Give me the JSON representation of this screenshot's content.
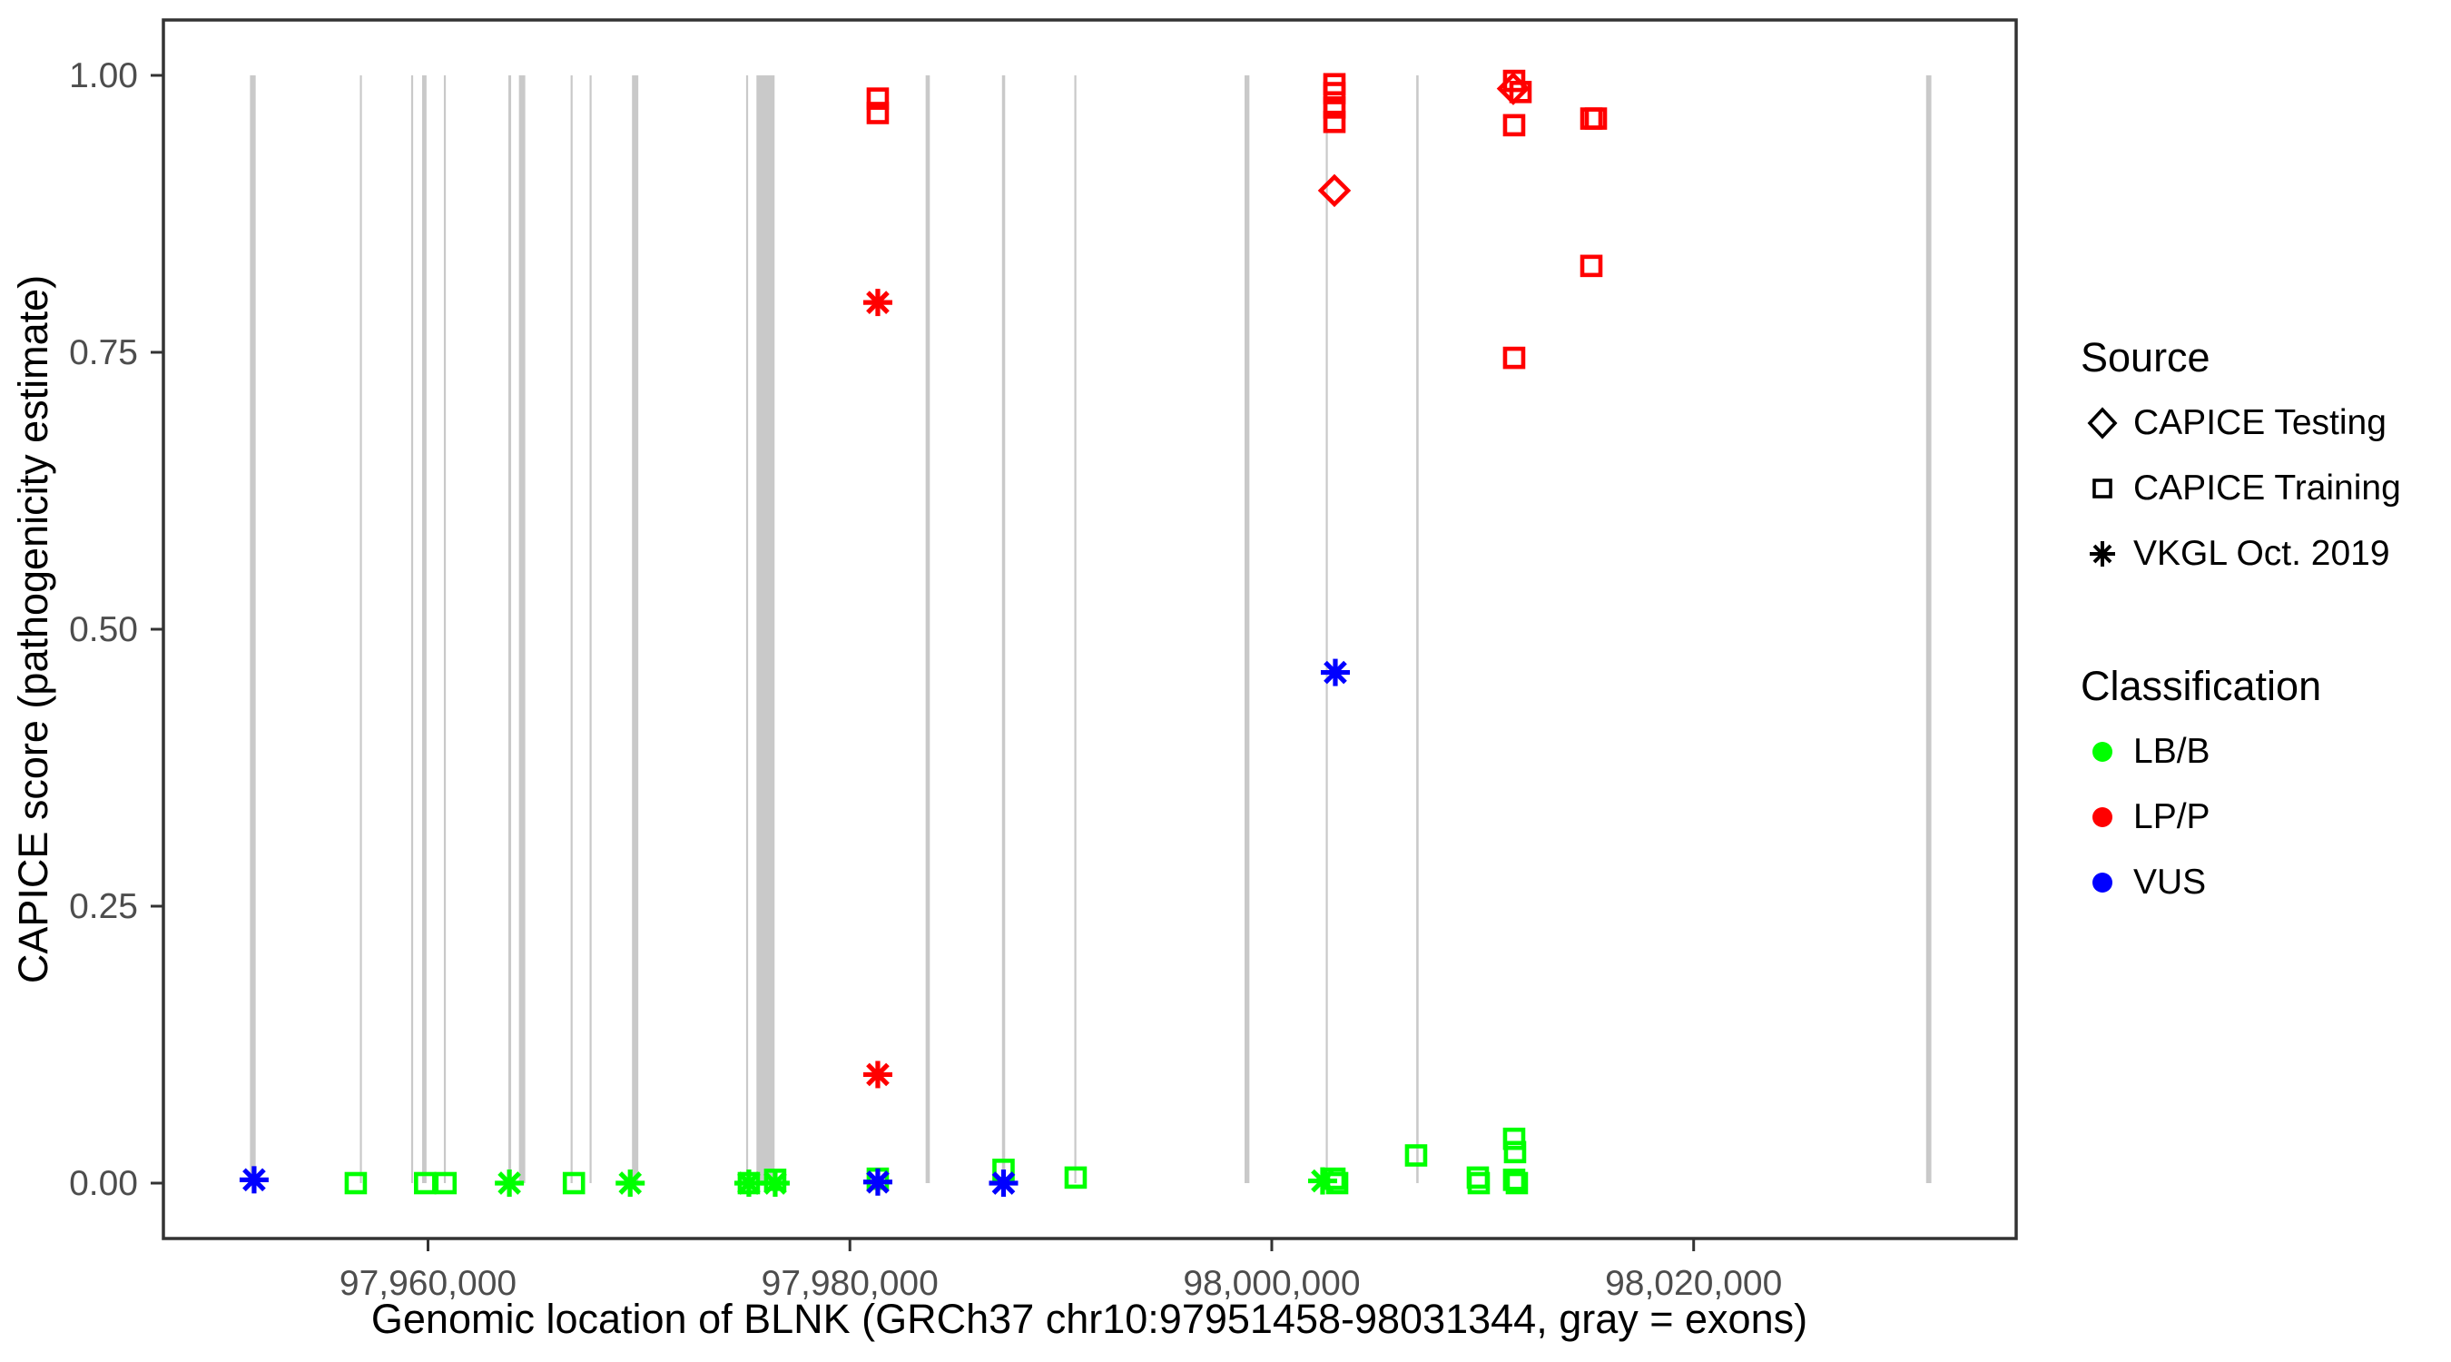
{
  "figure": {
    "kind": "scatter plot",
    "background": "#ffffff"
  },
  "legend": {
    "source": {
      "title": "Source",
      "items": [
        {
          "label": "CAPICE Testing",
          "symbol": "diamond-icon"
        },
        {
          "label": "CAPICE Training",
          "symbol": "square-icon"
        },
        {
          "label": "VKGL Oct. 2019",
          "symbol": "asterisk-icon"
        }
      ]
    },
    "classification": {
      "title": "Classification",
      "items": [
        {
          "label": "LB/B",
          "color": "#00FF00"
        },
        {
          "label": "LP/P",
          "color": "#FF0000"
        },
        {
          "label": "VUS",
          "color": "#0000FF"
        }
      ]
    }
  },
  "colors": {
    "accent_red": "#FF0000",
    "accent_green": "#00FF00",
    "accent_blue": "#0000FF",
    "exon_gray": "#C9C9C9",
    "panel_border": "#333333",
    "tick_text": "#4D4D4D",
    "title_text": "#000000"
  },
  "chart_data": {
    "type": "scatter",
    "title": "",
    "xlabel": "Genomic location of BLNK (GRCh37 chr10:97951458-98031344, gray = exons)",
    "ylabel": "CAPICE score (pathogenicity estimate)",
    "grid": false,
    "legend_position": "right",
    "x_axis": {
      "min": 97947455,
      "max": 98035290,
      "ticks": [
        97960000,
        97980000,
        98000000,
        98020000
      ],
      "tick_labels": [
        "97,960,000",
        "97,980,000",
        "98,000,000",
        "98,020,000"
      ]
    },
    "y_axis": {
      "min": -0.05,
      "max": 1.05,
      "ticks": [
        0.0,
        0.25,
        0.5,
        0.75,
        1.0
      ],
      "tick_labels": [
        "0.00",
        "0.25",
        "0.50",
        "0.75",
        "1.00"
      ]
    },
    "shape_map": {
      "CAPICE Testing": "diamond",
      "CAPICE Training": "square",
      "VKGL Oct. 2019": "asterisk"
    },
    "classification_colors": {
      "LB/B": "#00FF00",
      "LP/P": "#FF0000",
      "VUS": "#0000FF"
    },
    "exons_note": "gray vertical bars = exons, drawn from score 0 to 1",
    "exons": [
      [
        97951560,
        97951830
      ],
      [
        97956770,
        97956860
      ],
      [
        97959200,
        97959290
      ],
      [
        97959720,
        97959930
      ],
      [
        97960750,
        97960840
      ],
      [
        97963810,
        97963940
      ],
      [
        97964310,
        97964610
      ],
      [
        97966760,
        97966850
      ],
      [
        97967660,
        97967750
      ],
      [
        97969670,
        97969970
      ],
      [
        97975080,
        97975170
      ],
      [
        97975570,
        97976430
      ],
      [
        97983590,
        97983790
      ],
      [
        97987210,
        97987360
      ],
      [
        97990640,
        97990730
      ],
      [
        97998710,
        97998940
      ],
      [
        98002560,
        98002650
      ],
      [
        98006850,
        98006960
      ],
      [
        98031020,
        98031270
      ]
    ],
    "points": [
      {
        "pos": 97951755,
        "score": 0.003,
        "source": "VKGL Oct. 2019",
        "classification": "VUS"
      },
      {
        "pos": 97956576,
        "score": 0.0,
        "source": "CAPICE Training",
        "classification": "LB/B"
      },
      {
        "pos": 97959863,
        "score": 0.0,
        "source": "CAPICE Training",
        "classification": "LB/B"
      },
      {
        "pos": 97960831,
        "score": 0.0,
        "source": "CAPICE Training",
        "classification": "LB/B"
      },
      {
        "pos": 97963857,
        "score": 0.0,
        "source": "VKGL Oct. 2019",
        "classification": "LB/B"
      },
      {
        "pos": 97966916,
        "score": 0.0,
        "source": "CAPICE Training",
        "classification": "LB/B"
      },
      {
        "pos": 97969585,
        "score": 0.0,
        "source": "VKGL Oct. 2019",
        "classification": "LB/B"
      },
      {
        "pos": 97975210,
        "score": 0.0,
        "source": "CAPICE Training",
        "classification": "LB/B"
      },
      {
        "pos": 97975210,
        "score": 0.0,
        "source": "VKGL Oct. 2019",
        "classification": "LB/B"
      },
      {
        "pos": 97976458,
        "score": 0.003,
        "source": "CAPICE Training",
        "classification": "LB/B"
      },
      {
        "pos": 97976458,
        "score": 0.0,
        "source": "VKGL Oct. 2019",
        "classification": "LB/B"
      },
      {
        "pos": 97981322,
        "score": 0.979,
        "source": "CAPICE Training",
        "classification": "LP/P"
      },
      {
        "pos": 97981322,
        "score": 0.966,
        "source": "CAPICE Training",
        "classification": "LP/P"
      },
      {
        "pos": 97981322,
        "score": 0.795,
        "source": "VKGL Oct. 2019",
        "classification": "LP/P"
      },
      {
        "pos": 97981322,
        "score": 0.098,
        "source": "VKGL Oct. 2019",
        "classification": "LP/P"
      },
      {
        "pos": 97981322,
        "score": 0.004,
        "source": "CAPICE Training",
        "classification": "LB/B"
      },
      {
        "pos": 97981322,
        "score": 0.001,
        "source": "VKGL Oct. 2019",
        "classification": "VUS"
      },
      {
        "pos": 97987283,
        "score": 0.012,
        "source": "CAPICE Training",
        "classification": "LB/B"
      },
      {
        "pos": 97987283,
        "score": 0.0,
        "source": "VKGL Oct. 2019",
        "classification": "VUS"
      },
      {
        "pos": 97990704,
        "score": 0.005,
        "source": "CAPICE Training",
        "classification": "LB/B"
      },
      {
        "pos": 98002970,
        "score": 0.992,
        "source": "CAPICE Training",
        "classification": "LP/P"
      },
      {
        "pos": 98002970,
        "score": 0.984,
        "source": "CAPICE Training",
        "classification": "LP/P"
      },
      {
        "pos": 98002970,
        "score": 0.971,
        "source": "CAPICE Training",
        "classification": "LP/P"
      },
      {
        "pos": 98002970,
        "score": 0.958,
        "source": "CAPICE Training",
        "classification": "LP/P"
      },
      {
        "pos": 98002970,
        "score": 0.896,
        "source": "CAPICE Testing",
        "classification": "LP/P"
      },
      {
        "pos": 98003013,
        "score": 0.461,
        "source": "VKGL Oct. 2019",
        "classification": "VUS"
      },
      {
        "pos": 98002410,
        "score": 0.002,
        "source": "VKGL Oct. 2019",
        "classification": "LB/B"
      },
      {
        "pos": 98002970,
        "score": 0.004,
        "source": "CAPICE Training",
        "classification": "LB/B"
      },
      {
        "pos": 98003100,
        "score": 0.0,
        "source": "CAPICE Training",
        "classification": "LB/B"
      },
      {
        "pos": 98006842,
        "score": 0.025,
        "source": "CAPICE Training",
        "classification": "LB/B"
      },
      {
        "pos": 98009769,
        "score": 0.005,
        "source": "CAPICE Training",
        "classification": "LB/B"
      },
      {
        "pos": 98009812,
        "score": 0.0,
        "source": "CAPICE Training",
        "classification": "LB/B"
      },
      {
        "pos": 98011490,
        "score": 0.995,
        "source": "CAPICE Training",
        "classification": "LP/P"
      },
      {
        "pos": 98011447,
        "score": 0.988,
        "source": "CAPICE Testing",
        "classification": "LP/P"
      },
      {
        "pos": 98011792,
        "score": 0.985,
        "source": "CAPICE Training",
        "classification": "LP/P"
      },
      {
        "pos": 98011490,
        "score": 0.955,
        "source": "CAPICE Training",
        "classification": "LP/P"
      },
      {
        "pos": 98011490,
        "score": 0.745,
        "source": "CAPICE Training",
        "classification": "LP/P"
      },
      {
        "pos": 98011490,
        "score": 0.04,
        "source": "CAPICE Training",
        "classification": "LB/B"
      },
      {
        "pos": 98011533,
        "score": 0.028,
        "source": "CAPICE Training",
        "classification": "LB/B"
      },
      {
        "pos": 98011490,
        "score": 0.003,
        "source": "CAPICE Training",
        "classification": "LB/B"
      },
      {
        "pos": 98011619,
        "score": 0.0,
        "source": "CAPICE Training",
        "classification": "LB/B"
      },
      {
        "pos": 98015150,
        "score": 0.961,
        "source": "CAPICE Training",
        "classification": "LP/P"
      },
      {
        "pos": 98015365,
        "score": 0.961,
        "source": "CAPICE Training",
        "classification": "LP/P"
      },
      {
        "pos": 98015150,
        "score": 0.828,
        "source": "CAPICE Training",
        "classification": "LP/P"
      }
    ]
  }
}
